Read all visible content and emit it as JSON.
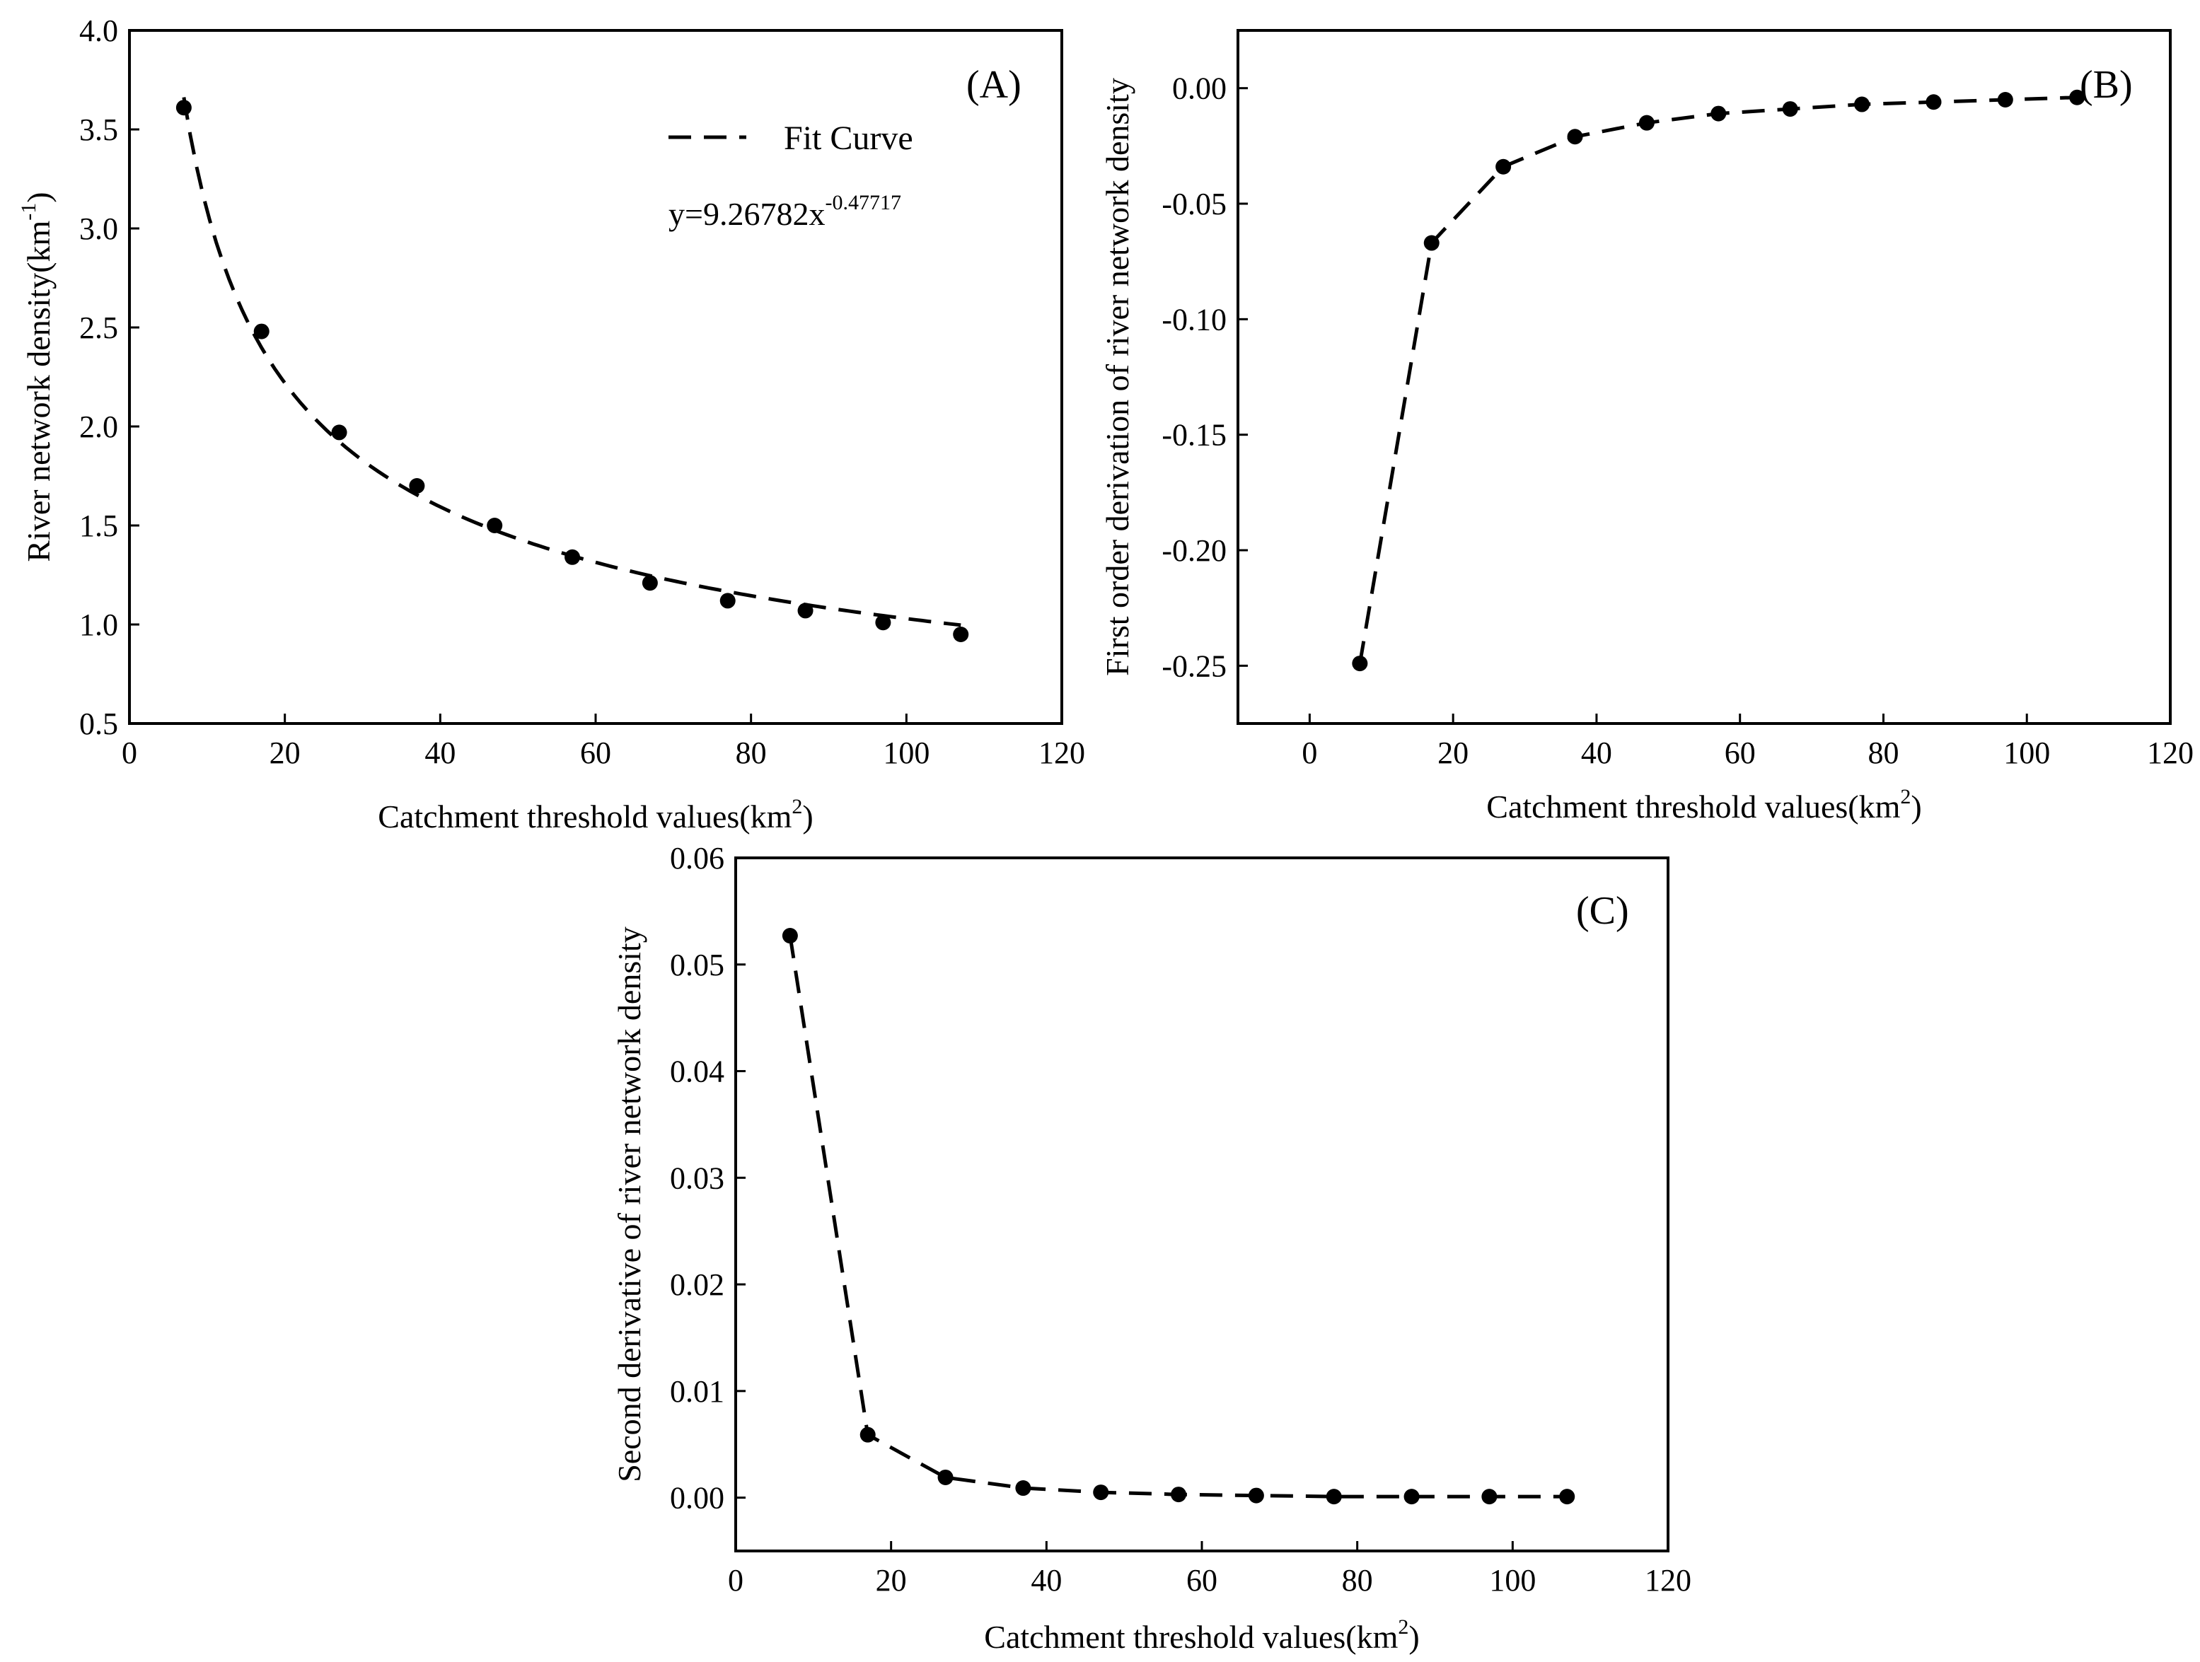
{
  "chart_data": [
    {
      "panel": "(A)",
      "type": "scatter",
      "xlabel": "Catchment threshold values(km",
      "xlabel_sup": "2",
      "xlabel_end": ")",
      "ylabel": "River network density(km",
      "ylabel_sup": "-1",
      "ylabel_end": ")",
      "xlim": [
        0,
        120
      ],
      "ylim": [
        0.5,
        4.0
      ],
      "xticks": [
        0,
        20,
        40,
        60,
        80,
        100,
        120
      ],
      "yticks": [
        0.5,
        1.0,
        1.5,
        2.0,
        2.5,
        3.0,
        3.5,
        4.0
      ],
      "x": [
        7,
        17,
        27,
        37,
        47,
        57,
        67,
        77,
        87,
        97,
        107
      ],
      "y": [
        3.61,
        2.48,
        1.97,
        1.7,
        1.5,
        1.34,
        1.21,
        1.12,
        1.07,
        1.01,
        0.95
      ],
      "fit": {
        "a": 9.26782,
        "b": -0.47717,
        "x_range": [
          7,
          107
        ]
      },
      "legend_label": "Fit Curve",
      "equation_prefix": "y=9.26782x",
      "equation_exponent": "-0.47717"
    },
    {
      "panel": "(B)",
      "type": "line",
      "xlabel": "Catchment threshold values(km",
      "xlabel_sup": "2",
      "xlabel_end": ")",
      "ylabel": "First order derivation of river network density",
      "xlim": [
        -10,
        120
      ],
      "ylim": [
        -0.275,
        0.025
      ],
      "xticks": [
        0,
        20,
        40,
        60,
        80,
        100,
        120
      ],
      "yticks": [
        -0.25,
        -0.2,
        -0.15,
        -0.1,
        -0.05,
        0.0
      ],
      "ytick_labels": [
        "-0.25",
        "-0.20",
        "-0.15",
        "-0.10",
        "-0.05",
        "0.00"
      ],
      "x": [
        7,
        17,
        27,
        37,
        47,
        57,
        67,
        77,
        87,
        97,
        107
      ],
      "y": [
        -0.249,
        -0.067,
        -0.034,
        -0.021,
        -0.015,
        -0.011,
        -0.009,
        -0.007,
        -0.006,
        -0.005,
        -0.004
      ]
    },
    {
      "panel": "(C)",
      "type": "line",
      "xlabel": "Catchment threshold values(km",
      "xlabel_sup": "2",
      "xlabel_end": ")",
      "ylabel": "Second derivative of river network density",
      "xlim": [
        0,
        120
      ],
      "ylim": [
        -0.005,
        0.06
      ],
      "xticks": [
        0,
        20,
        40,
        60,
        80,
        100,
        120
      ],
      "yticks": [
        0.0,
        0.01,
        0.02,
        0.03,
        0.04,
        0.05,
        0.06
      ],
      "ytick_labels": [
        "0.00",
        "0.01",
        "0.02",
        "0.03",
        "0.04",
        "0.05",
        "0.06"
      ],
      "x": [
        7,
        17,
        27,
        37,
        47,
        57,
        67,
        77,
        87,
        97,
        107
      ],
      "y": [
        0.0527,
        0.0059,
        0.0019,
        0.0009,
        0.0005,
        0.0003,
        0.0002,
        0.0001,
        0.0001,
        0.0001,
        0.0001
      ]
    }
  ]
}
